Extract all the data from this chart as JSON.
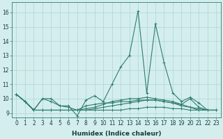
{
  "xlabel": "Humidex (Indice chaleur)",
  "x_values": [
    0,
    1,
    2,
    3,
    4,
    5,
    6,
    7,
    8,
    9,
    10,
    11,
    12,
    13,
    14,
    15,
    16,
    17,
    18,
    19,
    20,
    21,
    22,
    23
  ],
  "series": [
    [
      10.3,
      9.8,
      9.2,
      10.0,
      10.0,
      9.5,
      9.5,
      8.8,
      9.9,
      10.2,
      9.8,
      11.0,
      12.2,
      13.0,
      16.1,
      10.4,
      15.2,
      12.5,
      10.4,
      9.8,
      10.1,
      9.7,
      9.2,
      9.2
    ],
    [
      10.3,
      9.8,
      9.2,
      10.0,
      9.8,
      9.5,
      9.4,
      9.2,
      9.5,
      9.6,
      9.7,
      9.7,
      9.8,
      9.8,
      9.9,
      9.9,
      9.9,
      9.8,
      9.7,
      9.6,
      10.0,
      9.4,
      9.2,
      9.2
    ],
    [
      10.3,
      9.8,
      9.2,
      9.2,
      9.2,
      9.2,
      9.2,
      9.2,
      9.2,
      9.2,
      9.2,
      9.2,
      9.2,
      9.3,
      9.3,
      9.4,
      9.4,
      9.4,
      9.3,
      9.3,
      9.2,
      9.2,
      9.2,
      9.2
    ],
    [
      10.3,
      9.8,
      9.2,
      9.2,
      9.2,
      9.2,
      9.2,
      9.2,
      9.2,
      9.3,
      9.4,
      9.5,
      9.6,
      9.7,
      9.8,
      9.9,
      9.9,
      9.8,
      9.7,
      9.5,
      9.4,
      9.3,
      9.2,
      9.2
    ],
    [
      10.3,
      9.8,
      9.2,
      9.2,
      9.2,
      9.2,
      9.2,
      9.2,
      9.3,
      9.4,
      9.6,
      9.8,
      9.9,
      10.0,
      10.0,
      10.1,
      10.0,
      9.9,
      9.8,
      9.6,
      9.4,
      9.2,
      9.2,
      9.2
    ]
  ],
  "line_color": "#2e7d6e",
  "marker": "+",
  "markersize": 3,
  "linewidth": 0.8,
  "background_color": "#d4eeee",
  "grid_color": "#aed4d4",
  "ylim": [
    8.7,
    16.7
  ],
  "yticks": [
    9,
    10,
    11,
    12,
    13,
    14,
    15,
    16
  ],
  "xlim": [
    -0.5,
    23.5
  ],
  "xticks": [
    0,
    1,
    2,
    3,
    4,
    5,
    6,
    7,
    8,
    9,
    10,
    11,
    12,
    13,
    14,
    15,
    16,
    17,
    18,
    19,
    20,
    21,
    22,
    23
  ],
  "tick_fontsize": 5.5,
  "xlabel_fontsize": 6.5
}
